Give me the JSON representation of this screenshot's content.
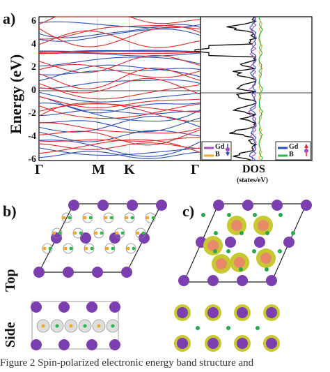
{
  "panel_labels": {
    "a": "a)",
    "b": "b)",
    "c": "c)"
  },
  "row_labels": {
    "top": "Top",
    "side": "Side"
  },
  "chart_data": [
    {
      "type": "line",
      "title": "",
      "ylabel": "Energy (eV)",
      "ylim": [
        -6,
        6.5
      ],
      "yticks": [
        6,
        4,
        2,
        0,
        -2,
        -4,
        -6
      ],
      "kpath": [
        "Γ",
        "M",
        "K",
        "Γ"
      ],
      "series": [
        {
          "name": "",
          "color": "#2b4fb8"
        },
        {
          "name": "",
          "color": "#e02828"
        }
      ],
      "fermi_level": 0
    },
    {
      "type": "line",
      "xlabel": "DOS",
      "xunit": "(states/eV)",
      "legend_left": [
        {
          "label": "Gd",
          "color": "#a44bbd"
        },
        {
          "label": "B",
          "color": "#f5a623"
        }
      ],
      "legend_right": [
        {
          "label": "Gd",
          "color": "#2b4fb8"
        },
        {
          "label": "B",
          "color": "#28b84a"
        }
      ]
    }
  ],
  "caption_text": "Figure 2  Spin-polarized electronic energy band structure and"
}
